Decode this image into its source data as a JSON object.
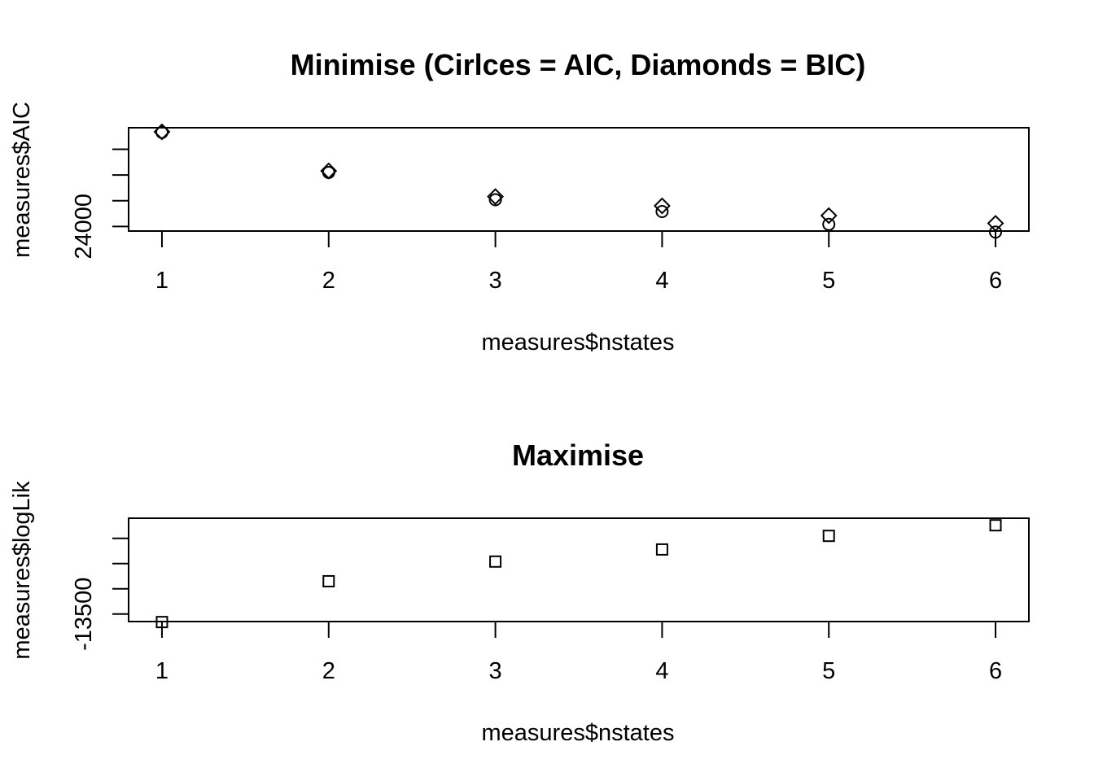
{
  "chart_data": [
    {
      "type": "scatter",
      "title": "Minimise (Cirlces = AIC, Diamonds = BIC)",
      "xlabel": "measures$nstates",
      "ylabel": "measures$AIC",
      "x": [
        1,
        2,
        3,
        4,
        5,
        6
      ],
      "xlim": [
        0.8,
        6.2
      ],
      "ylim": [
        23910,
        25920
      ],
      "xticks": [
        "1",
        "2",
        "3",
        "4",
        "5",
        "6"
      ],
      "yticks": [
        {
          "value": 24000,
          "label": "24000"
        },
        {
          "value": 24500,
          "label": ""
        },
        {
          "value": 25000,
          "label": ""
        },
        {
          "value": 25500,
          "label": ""
        }
      ],
      "series": [
        {
          "marker": "circle",
          "values": [
            25830,
            25050,
            24520,
            24290,
            24040,
            23890
          ]
        },
        {
          "marker": "diamond",
          "values": [
            25840,
            25080,
            24580,
            24400,
            24210,
            24060
          ]
        }
      ]
    },
    {
      "type": "scatter",
      "title": "Maximise",
      "xlabel": "measures$nstates",
      "ylabel": "measures$logLik",
      "x": [
        1,
        2,
        3,
        4,
        5,
        6
      ],
      "xlim": [
        0.8,
        6.2
      ],
      "ylim": [
        -13650,
        -11600
      ],
      "xticks": [
        "1",
        "2",
        "3",
        "4",
        "5",
        "6"
      ],
      "yticks": [
        {
          "value": -13500,
          "label": "-13500"
        },
        {
          "value": -13000,
          "label": ""
        },
        {
          "value": -12500,
          "label": ""
        },
        {
          "value": -12000,
          "label": ""
        }
      ],
      "series": [
        {
          "marker": "square",
          "values": [
            -13660,
            -12850,
            -12460,
            -12220,
            -11950,
            -11740
          ]
        }
      ]
    }
  ]
}
